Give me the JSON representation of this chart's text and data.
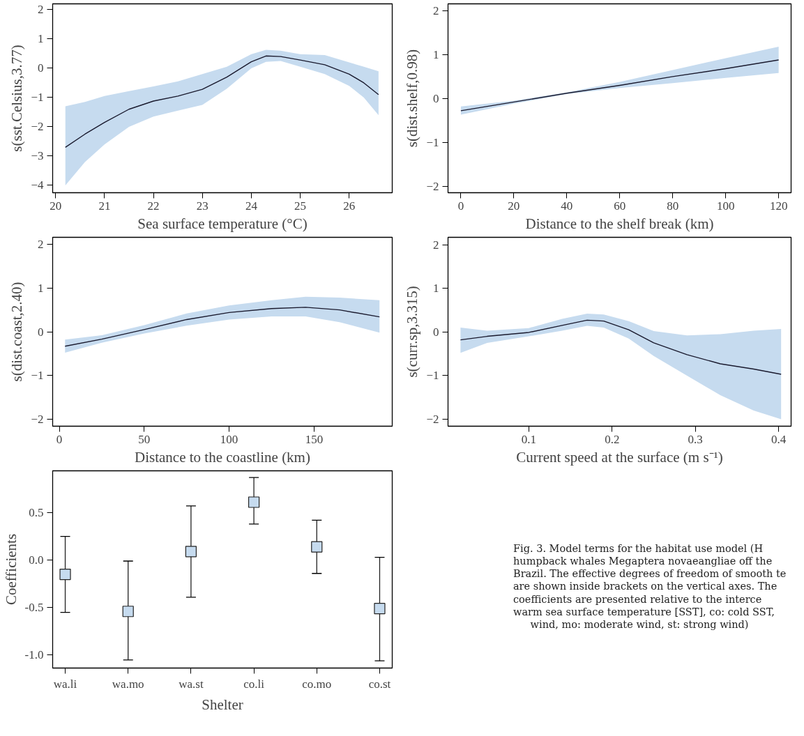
{
  "chart_data": [
    {
      "type": "line",
      "xlabel": "Sea surface temperature (°C)",
      "ylabel": "s(sst.Celsius,3.77)",
      "xlim": [
        19.94,
        26.88
      ],
      "ylim": [
        -4.25,
        2.2
      ],
      "xticks": [
        20,
        21,
        22,
        23,
        24,
        25,
        26
      ],
      "yticks": [
        -4,
        -3,
        -2,
        -1,
        0,
        1,
        2
      ],
      "grid": false,
      "series": [
        {
          "color": "#1a1a2e",
          "x": [
            20.2,
            20.6,
            21,
            21.5,
            22,
            22.5,
            23,
            23.5,
            24,
            24.3,
            24.6,
            25,
            25.5,
            26,
            26.3,
            26.6
          ],
          "values": [
            -2.7,
            -2.25,
            -1.85,
            -1.4,
            -1.12,
            -0.95,
            -0.72,
            -0.3,
            0.22,
            0.42,
            0.4,
            0.28,
            0.12,
            -0.2,
            -0.5,
            -0.9
          ],
          "upper": [
            -1.3,
            -1.15,
            -0.95,
            -0.78,
            -0.62,
            -0.45,
            -0.2,
            0.05,
            0.48,
            0.63,
            0.6,
            0.48,
            0.45,
            0.2,
            0.05,
            -0.1
          ],
          "lower": [
            -4.0,
            -3.2,
            -2.6,
            -2.0,
            -1.65,
            -1.45,
            -1.25,
            -0.7,
            0.0,
            0.22,
            0.25,
            0.05,
            -0.2,
            -0.6,
            -1.0,
            -1.6
          ]
        }
      ]
    },
    {
      "type": "line",
      "xlabel": "Distance to the shelf break (km)",
      "ylabel": "s(dist.shelf,0.98)",
      "xlim": [
        -4.85,
        124.7
      ],
      "ylim": [
        -2.15,
        2.16
      ],
      "xticks": [
        0,
        20,
        40,
        60,
        80,
        100,
        120
      ],
      "yticks": [
        -2,
        -1,
        0,
        1,
        2
      ],
      "grid": false,
      "series": [
        {
          "color": "#1a1a2e",
          "x": [
            0,
            20,
            40,
            60,
            80,
            100,
            120
          ],
          "values": [
            -0.28,
            -0.08,
            0.12,
            0.3,
            0.5,
            0.68,
            0.88
          ],
          "upper": [
            -0.18,
            -0.05,
            0.14,
            0.38,
            0.65,
            0.92,
            1.18
          ],
          "lower": [
            -0.37,
            -0.12,
            0.1,
            0.24,
            0.35,
            0.47,
            0.58
          ]
        }
      ]
    },
    {
      "type": "line",
      "xlabel": "Distance to the coastline (km)",
      "ylabel": "s(dist.coast,2.40)",
      "xlim": [
        -3.9,
        196
      ],
      "ylim": [
        -2.16,
        2.16
      ],
      "xticks": [
        0,
        50,
        100,
        150
      ],
      "yticks": [
        -2,
        -1,
        0,
        1,
        2
      ],
      "grid": false,
      "series": [
        {
          "color": "#1a1a2e",
          "x": [
            3.4,
            25,
            50,
            75,
            100,
            125,
            145,
            165,
            188.5
          ],
          "values": [
            -0.33,
            -0.17,
            0.05,
            0.28,
            0.44,
            0.53,
            0.56,
            0.5,
            0.34
          ],
          "upper": [
            -0.18,
            -0.08,
            0.15,
            0.42,
            0.6,
            0.72,
            0.8,
            0.78,
            0.72
          ],
          "lower": [
            -0.48,
            -0.25,
            -0.04,
            0.14,
            0.28,
            0.35,
            0.35,
            0.22,
            -0.02
          ]
        }
      ]
    },
    {
      "type": "line",
      "xlabel": "Current speed at the surface (m s⁻¹)",
      "ylabel": "s(curr.sp,3.315)",
      "xlim": [
        0.003,
        0.415
      ],
      "ylim": [
        -2.16,
        2.17
      ],
      "xticks": [
        0.1,
        0.2,
        0.3,
        0.4
      ],
      "yticks": [
        -2,
        -1,
        0,
        1,
        2
      ],
      "grid": false,
      "series": [
        {
          "color": "#1a1a2e",
          "x": [
            0.018,
            0.05,
            0.1,
            0.14,
            0.17,
            0.19,
            0.22,
            0.25,
            0.29,
            0.33,
            0.37,
            0.403
          ],
          "values": [
            -0.18,
            -0.1,
            -0.01,
            0.15,
            0.27,
            0.25,
            0.05,
            -0.25,
            -0.52,
            -0.73,
            -0.85,
            -0.97
          ],
          "upper": [
            0.1,
            0.03,
            0.09,
            0.3,
            0.42,
            0.4,
            0.25,
            0.02,
            -0.08,
            -0.05,
            0.03,
            0.07
          ],
          "lower": [
            -0.48,
            -0.25,
            -0.1,
            0.03,
            0.14,
            0.1,
            -0.15,
            -0.55,
            -1.0,
            -1.45,
            -1.8,
            -2.0
          ]
        }
      ]
    },
    {
      "type": "scatter",
      "xlabel": "Shelter",
      "ylabel": "Coefficients",
      "categories": [
        "wa.li",
        "wa.mo",
        "wa.st",
        "co.li",
        "co.mo",
        "co.st"
      ],
      "ylim": [
        -1.136,
        0.94
      ],
      "yticks": [
        {
          "value": -1,
          "label": "-1.0"
        },
        {
          "value": -0.5,
          "label": "-0.5"
        },
        {
          "value": 0,
          "label": "0.0"
        },
        {
          "value": 0.5,
          "label": "0.5"
        }
      ],
      "grid": false,
      "marker": "square",
      "color": "#c6dbef",
      "values": [
        -0.15,
        -0.54,
        0.09,
        0.61,
        0.14,
        -0.51
      ],
      "errors": [
        [
          -0.55,
          0.25
        ],
        [
          -1.05,
          -0.01
        ],
        [
          -0.39,
          0.57
        ],
        [
          0.38,
          0.87
        ],
        [
          -0.14,
          0.42
        ],
        [
          -1.06,
          0.03
        ]
      ]
    },
    {
      "type": "other",
      "annotations": [
        "Fig. 3. Model terms for the habitat use model (H",
        "humpback whales Megaptera novaeangliae off the",
        "Brazil. The effective degrees of freedom of smooth te",
        "are shown inside brackets on the vertical axes. The",
        "coefficients are presented relative to the interce",
        "warm sea surface temperature [SST], co: cold SST,",
        "wind, mo: moderate wind, st: strong wind)"
      ]
    }
  ]
}
